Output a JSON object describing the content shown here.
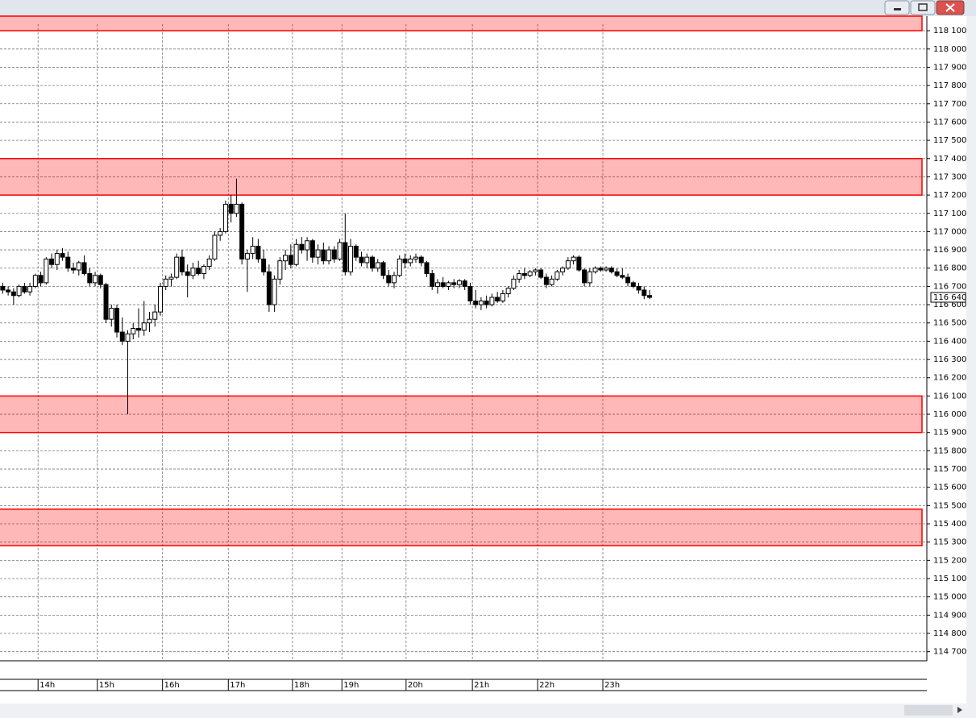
{
  "chart_data": {
    "type": "candlestick",
    "ylim": [
      114650,
      118180
    ],
    "xlim": [
      -0.5,
      170
    ],
    "grid": true,
    "up_color": "#ffffff",
    "down_color": "#000000",
    "zone_color": "#ff0000",
    "yticks": [
      {
        "value": 114700,
        "label": "114 700"
      },
      {
        "value": 114800,
        "label": "114 800"
      },
      {
        "value": 114900,
        "label": "114 900"
      },
      {
        "value": 115000,
        "label": "115 000"
      },
      {
        "value": 115100,
        "label": "115 100"
      },
      {
        "value": 115200,
        "label": "115 200"
      },
      {
        "value": 115300,
        "label": "115 300"
      },
      {
        "value": 115400,
        "label": "115 400"
      },
      {
        "value": 115500,
        "label": "115 500"
      },
      {
        "value": 115600,
        "label": "115 600"
      },
      {
        "value": 115700,
        "label": "115 700"
      },
      {
        "value": 115800,
        "label": "115 800"
      },
      {
        "value": 115900,
        "label": "115 900"
      },
      {
        "value": 116000,
        "label": "116 000"
      },
      {
        "value": 116100,
        "label": "116 100"
      },
      {
        "value": 116200,
        "label": "116 200"
      },
      {
        "value": 116300,
        "label": "116 300"
      },
      {
        "value": 116400,
        "label": "116 400"
      },
      {
        "value": 116500,
        "label": "116 500"
      },
      {
        "value": 116600,
        "label": "116 600"
      },
      {
        "value": 116700,
        "label": "116 700"
      },
      {
        "value": 116800,
        "label": "116 800"
      },
      {
        "value": 116900,
        "label": "116 900"
      },
      {
        "value": 117000,
        "label": "117 000"
      },
      {
        "value": 117100,
        "label": "117 100"
      },
      {
        "value": 117200,
        "label": "117 200"
      },
      {
        "value": 117300,
        "label": "117 300"
      },
      {
        "value": 117400,
        "label": "117 400"
      },
      {
        "value": 117500,
        "label": "117 500"
      },
      {
        "value": 117600,
        "label": "117 600"
      },
      {
        "value": 117700,
        "label": "117 700"
      },
      {
        "value": 117800,
        "label": "117 800"
      },
      {
        "value": 117900,
        "label": "117 900"
      },
      {
        "value": 118000,
        "label": "118 000"
      },
      {
        "value": 118100,
        "label": "118 100"
      }
    ],
    "xticks": [
      {
        "value": 6.5,
        "label": "14h"
      },
      {
        "value": 17.4,
        "label": "15h"
      },
      {
        "value": 29.4,
        "label": "16h"
      },
      {
        "value": 41.5,
        "label": "17h"
      },
      {
        "value": 53.3,
        "label": "18h"
      },
      {
        "value": 62.4,
        "label": "19h"
      },
      {
        "value": 74.2,
        "label": "20h"
      },
      {
        "value": 86.4,
        "label": "21h"
      },
      {
        "value": 98.4,
        "label": "22h"
      },
      {
        "value": 110.4,
        "label": "23h"
      }
    ],
    "current_price": {
      "value": 116640,
      "label": "116 640"
    },
    "zones": [
      [
        118100,
        118180
      ],
      [
        117200,
        117400
      ],
      [
        115900,
        116100
      ],
      [
        115280,
        115480
      ]
    ],
    "ohlc": [
      [
        116700,
        116720,
        116660,
        116680
      ],
      [
        116680,
        116700,
        116650,
        116670
      ],
      [
        116670,
        116690,
        116600,
        116650
      ],
      [
        116650,
        116710,
        116640,
        116700
      ],
      [
        116700,
        116720,
        116660,
        116670
      ],
      [
        116670,
        116720,
        116650,
        116700
      ],
      [
        116700,
        116770,
        116690,
        116760
      ],
      [
        116760,
        116780,
        116700,
        116720
      ],
      [
        116720,
        116860,
        116710,
        116850
      ],
      [
        116850,
        116880,
        116800,
        116820
      ],
      [
        116820,
        116900,
        116790,
        116880
      ],
      [
        116880,
        116910,
        116840,
        116860
      ],
      [
        116860,
        116890,
        116780,
        116800
      ],
      [
        116800,
        116830,
        116770,
        116790
      ],
      [
        116790,
        116840,
        116760,
        116830
      ],
      [
        116830,
        116870,
        116760,
        116770
      ],
      [
        116770,
        116800,
        116700,
        116720
      ],
      [
        116720,
        116780,
        116700,
        116760
      ],
      [
        116760,
        116770,
        116690,
        116710
      ],
      [
        116710,
        116720,
        116500,
        116520
      ],
      [
        116520,
        116600,
        116480,
        116580
      ],
      [
        116580,
        116600,
        116420,
        116450
      ],
      [
        116450,
        116530,
        116380,
        116400
      ],
      [
        116400,
        116460,
        116000,
        116440
      ],
      [
        116440,
        116500,
        116410,
        116470
      ],
      [
        116470,
        116580,
        116420,
        116460
      ],
      [
        116460,
        116620,
        116430,
        116500
      ],
      [
        116500,
        116560,
        116450,
        116520
      ],
      [
        116520,
        116600,
        116480,
        116560
      ],
      [
        116560,
        116720,
        116540,
        116700
      ],
      [
        116700,
        116760,
        116680,
        116740
      ],
      [
        116740,
        116770,
        116700,
        116750
      ],
      [
        116750,
        116880,
        116740,
        116860
      ],
      [
        116860,
        116900,
        116760,
        116780
      ],
      [
        116780,
        116820,
        116640,
        116760
      ],
      [
        116760,
        116830,
        116740,
        116800
      ],
      [
        116800,
        116840,
        116760,
        116770
      ],
      [
        116770,
        116820,
        116740,
        116810
      ],
      [
        116810,
        116870,
        116790,
        116850
      ],
      [
        116850,
        117000,
        116840,
        116980
      ],
      [
        116980,
        117020,
        116950,
        117000
      ],
      [
        117000,
        117170,
        116990,
        117150
      ],
      [
        117150,
        117200,
        117050,
        117100
      ],
      [
        117100,
        117290,
        117080,
        117150
      ],
      [
        117150,
        117160,
        116820,
        116850
      ],
      [
        116850,
        116900,
        116670,
        116880
      ],
      [
        116880,
        116970,
        116850,
        116920
      ],
      [
        116920,
        116960,
        116830,
        116850
      ],
      [
        116850,
        116900,
        116760,
        116780
      ],
      [
        116780,
        116820,
        116560,
        116600
      ],
      [
        116600,
        116760,
        116560,
        116740
      ],
      [
        116740,
        116860,
        116710,
        116840
      ],
      [
        116840,
        116900,
        116790,
        116870
      ],
      [
        116870,
        116930,
        116800,
        116820
      ],
      [
        116820,
        116960,
        116810,
        116930
      ],
      [
        116930,
        116970,
        116880,
        116900
      ],
      [
        116900,
        116970,
        116840,
        116950
      ],
      [
        116950,
        116960,
        116830,
        116860
      ],
      [
        116860,
        116930,
        116820,
        116900
      ],
      [
        116900,
        116940,
        116820,
        116840
      ],
      [
        116840,
        116920,
        116820,
        116900
      ],
      [
        116900,
        116920,
        116830,
        116850
      ],
      [
        116850,
        116960,
        116840,
        116940
      ],
      [
        116940,
        117100,
        116760,
        116780
      ],
      [
        116780,
        116960,
        116760,
        116920
      ],
      [
        116920,
        116930,
        116840,
        116860
      ],
      [
        116860,
        116890,
        116810,
        116830
      ],
      [
        116830,
        116880,
        116800,
        116860
      ],
      [
        116860,
        116870,
        116780,
        116800
      ],
      [
        116800,
        116850,
        116780,
        116830
      ],
      [
        116830,
        116840,
        116740,
        116760
      ],
      [
        116760,
        116790,
        116700,
        116720
      ],
      [
        116720,
        116780,
        116690,
        116760
      ],
      [
        116760,
        116870,
        116750,
        116850
      ],
      [
        116850,
        116880,
        116800,
        116830
      ],
      [
        116830,
        116870,
        116810,
        116850
      ],
      [
        116850,
        116880,
        116830,
        116860
      ],
      [
        116860,
        116870,
        116810,
        116830
      ],
      [
        116830,
        116840,
        116750,
        116770
      ],
      [
        116770,
        116790,
        116680,
        116700
      ],
      [
        116700,
        116740,
        116660,
        116720
      ],
      [
        116720,
        116750,
        116690,
        116700
      ],
      [
        116700,
        116730,
        116680,
        116720
      ],
      [
        116720,
        116740,
        116690,
        116710
      ],
      [
        116710,
        116740,
        116690,
        116730
      ],
      [
        116730,
        116740,
        116680,
        116700
      ],
      [
        116700,
        116720,
        116600,
        116620
      ],
      [
        116620,
        116680,
        116580,
        116600
      ],
      [
        116600,
        116640,
        116570,
        116620
      ],
      [
        116620,
        116650,
        116580,
        116600
      ],
      [
        116600,
        116660,
        116590,
        116640
      ],
      [
        116640,
        116670,
        116610,
        116620
      ],
      [
        116620,
        116680,
        116610,
        116660
      ],
      [
        116660,
        116700,
        116640,
        116690
      ],
      [
        116690,
        116760,
        116680,
        116740
      ],
      [
        116740,
        116790,
        116720,
        116770
      ],
      [
        116770,
        116800,
        116740,
        116760
      ],
      [
        116760,
        116790,
        116750,
        116780
      ],
      [
        116780,
        116800,
        116760,
        116790
      ],
      [
        116790,
        116800,
        116740,
        116750
      ],
      [
        116750,
        116770,
        116690,
        116710
      ],
      [
        116710,
        116760,
        116700,
        116740
      ],
      [
        116740,
        116790,
        116730,
        116780
      ],
      [
        116780,
        116810,
        116760,
        116800
      ],
      [
        116800,
        116860,
        116790,
        116840
      ],
      [
        116840,
        116870,
        116820,
        116860
      ],
      [
        116860,
        116870,
        116780,
        116790
      ],
      [
        116790,
        116800,
        116700,
        116720
      ],
      [
        116720,
        116800,
        116700,
        116780
      ],
      [
        116780,
        116810,
        116770,
        116800
      ],
      [
        116800,
        116810,
        116780,
        116790
      ],
      [
        116790,
        116810,
        116780,
        116800
      ],
      [
        116800,
        116810,
        116770,
        116780
      ],
      [
        116780,
        116800,
        116750,
        116760
      ],
      [
        116760,
        116800,
        116740,
        116750
      ],
      [
        116750,
        116770,
        116700,
        116720
      ],
      [
        116720,
        116730,
        116690,
        116700
      ],
      [
        116700,
        116720,
        116660,
        116680
      ],
      [
        116680,
        116700,
        116630,
        116650
      ],
      [
        116650,
        116680,
        116630,
        116640
      ]
    ]
  }
}
